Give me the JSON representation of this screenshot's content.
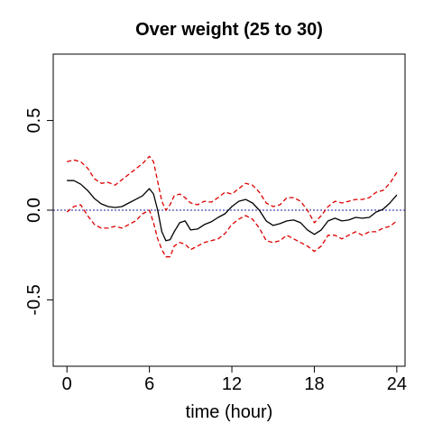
{
  "chart_data": {
    "type": "line",
    "title": "Over weight (25 to 30)",
    "xlabel": "time (hour)",
    "ylabel": "",
    "xlim": [
      -1,
      24.6
    ],
    "ylim": [
      -0.87,
      0.87
    ],
    "x_ticks": [
      0,
      6,
      12,
      18,
      24
    ],
    "x_tick_labels": [
      "0",
      "6",
      "12",
      "18",
      "24"
    ],
    "y_ticks": [
      -0.5,
      0.0,
      0.5
    ],
    "y_tick_labels": [
      "-0.5",
      "0.0",
      "0.5"
    ],
    "grid": false,
    "reference_line": {
      "y": 0.0,
      "color": "#1a1aa0",
      "style": "dotted"
    },
    "series": [
      {
        "role": "estimate",
        "color": "#000000",
        "style": "solid",
        "x": [
          0,
          0.5,
          1,
          1.5,
          2,
          2.5,
          3,
          3.5,
          4,
          4.5,
          5,
          5.5,
          6,
          6.3,
          6.6,
          6.9,
          7.2,
          7.5,
          7.8,
          8.2,
          8.6,
          9,
          9.5,
          10,
          10.5,
          11,
          11.5,
          12,
          12.5,
          13,
          13.5,
          14,
          14.5,
          15,
          15.5,
          16,
          16.5,
          17,
          17.5,
          18,
          18.5,
          19,
          19.5,
          20,
          20.5,
          21,
          21.5,
          22,
          22.5,
          23,
          23.5,
          24
        ],
        "y": [
          0.165,
          0.165,
          0.145,
          0.11,
          0.065,
          0.035,
          0.02,
          0.015,
          0.02,
          0.04,
          0.06,
          0.08,
          0.12,
          0.09,
          0.0,
          -0.12,
          -0.17,
          -0.165,
          -0.12,
          -0.07,
          -0.06,
          -0.11,
          -0.105,
          -0.08,
          -0.065,
          -0.04,
          -0.02,
          0.02,
          0.05,
          0.06,
          0.04,
          0.0,
          -0.06,
          -0.085,
          -0.075,
          -0.06,
          -0.055,
          -0.07,
          -0.11,
          -0.135,
          -0.11,
          -0.06,
          -0.045,
          -0.06,
          -0.055,
          -0.04,
          -0.045,
          -0.04,
          -0.01,
          0.005,
          0.04,
          0.085
        ]
      },
      {
        "role": "upper",
        "color": "#dd0000",
        "style": "dashed",
        "x": [
          0,
          0.5,
          1,
          1.5,
          2,
          2.5,
          3,
          3.5,
          4,
          4.5,
          5,
          5.5,
          6,
          6.3,
          6.6,
          6.9,
          7.2,
          7.5,
          7.8,
          8.2,
          8.6,
          9,
          9.5,
          10,
          10.5,
          11,
          11.5,
          12,
          12.5,
          13,
          13.5,
          14,
          14.5,
          15,
          15.5,
          16,
          16.5,
          17,
          17.5,
          18,
          18.5,
          19,
          19.5,
          20,
          20.5,
          21,
          21.5,
          22,
          22.5,
          23,
          23.5,
          24
        ],
        "y": [
          0.27,
          0.28,
          0.27,
          0.235,
          0.175,
          0.15,
          0.155,
          0.14,
          0.17,
          0.2,
          0.23,
          0.26,
          0.3,
          0.27,
          0.16,
          0.05,
          0.0,
          0.03,
          0.08,
          0.09,
          0.07,
          0.04,
          0.03,
          0.05,
          0.045,
          0.07,
          0.1,
          0.09,
          0.12,
          0.15,
          0.14,
          0.1,
          0.04,
          0.02,
          0.03,
          0.07,
          0.07,
          0.05,
          0.0,
          -0.07,
          -0.03,
          0.02,
          0.05,
          0.04,
          0.05,
          0.06,
          0.06,
          0.07,
          0.1,
          0.11,
          0.15,
          0.21
        ]
      },
      {
        "role": "lower",
        "color": "#dd0000",
        "style": "dashed",
        "x": [
          0,
          0.5,
          1,
          1.5,
          2,
          2.5,
          3,
          3.5,
          4,
          4.5,
          5,
          5.5,
          6,
          6.3,
          6.6,
          6.9,
          7.2,
          7.5,
          7.8,
          8.2,
          8.6,
          9,
          9.5,
          10,
          10.5,
          11,
          11.5,
          12,
          12.5,
          13,
          13.5,
          14,
          14.5,
          15,
          15.5,
          16,
          16.5,
          17,
          17.5,
          18,
          18.5,
          19,
          19.5,
          20,
          20.5,
          21,
          21.5,
          22,
          22.5,
          23,
          23.5,
          24
        ],
        "y": [
          -0.01,
          0.02,
          0.03,
          -0.03,
          -0.08,
          -0.1,
          -0.1,
          -0.09,
          -0.1,
          -0.08,
          -0.06,
          -0.02,
          0.0,
          -0.07,
          -0.16,
          -0.22,
          -0.26,
          -0.26,
          -0.2,
          -0.18,
          -0.19,
          -0.22,
          -0.2,
          -0.18,
          -0.17,
          -0.16,
          -0.13,
          -0.08,
          -0.05,
          -0.03,
          -0.05,
          -0.1,
          -0.17,
          -0.18,
          -0.17,
          -0.14,
          -0.16,
          -0.18,
          -0.2,
          -0.23,
          -0.2,
          -0.14,
          -0.14,
          -0.16,
          -0.14,
          -0.12,
          -0.14,
          -0.12,
          -0.12,
          -0.1,
          -0.09,
          -0.06
        ]
      }
    ]
  }
}
